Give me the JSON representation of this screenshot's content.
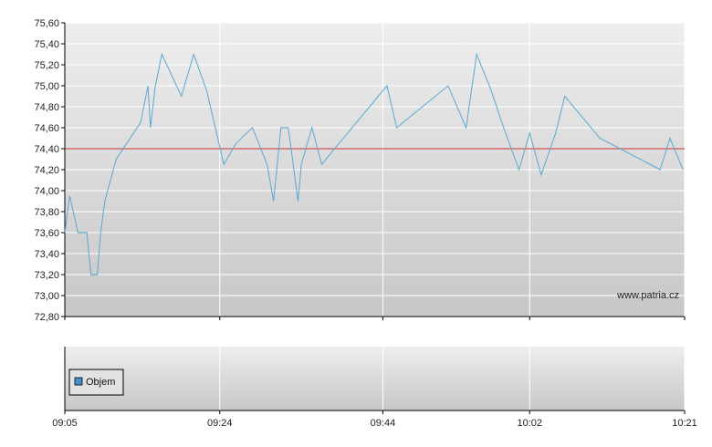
{
  "watermark": "www.patria.cz",
  "colors": {
    "line": "#5aa9d0",
    "reference": "#cc3333",
    "volume_legend": "#4a90c8"
  },
  "chart_data": [
    {
      "type": "line",
      "title": "",
      "xlabel": "",
      "ylabel": "",
      "ylim": [
        72.8,
        75.6
      ],
      "yticks": [
        "75,60",
        "75,40",
        "75,20",
        "75,00",
        "74,80",
        "74,60",
        "74,40",
        "74,20",
        "74,00",
        "73,80",
        "73,60",
        "73,40",
        "73,20",
        "73,00",
        "72,80"
      ],
      "xtick_labels": [
        "09:05",
        "09:24",
        "09:44",
        "10:02",
        "10:21"
      ],
      "xtick_minutes": [
        0,
        19,
        39,
        57,
        76
      ],
      "grid": true,
      "reference_line": 74.4,
      "series": [
        {
          "x": [
            0,
            0.6,
            1.6,
            2.7,
            3.2,
            4.0,
            4.4,
            4.9,
            6.3,
            9.3,
            10.2,
            10.5,
            11.1,
            11.9,
            14.3,
            15.8,
            17.4,
            19.5,
            21.0,
            23.0,
            24.8,
            25.6,
            26.5,
            27.1,
            27.4,
            28.0,
            28.6,
            29.0,
            30.3,
            31.5,
            39.5,
            40.7,
            47.0,
            49.2,
            50.5,
            52.3,
            53.8,
            55.7,
            57.0,
            58.4,
            60.2,
            61.3,
            65.6,
            73.0,
            74.2,
            75.8
          ],
          "y": [
            73.6,
            73.95,
            73.6,
            73.6,
            73.2,
            73.2,
            73.6,
            73.9,
            74.3,
            74.65,
            75.0,
            74.6,
            75.0,
            75.3,
            74.9,
            75.3,
            74.95,
            74.25,
            74.45,
            74.6,
            74.25,
            73.9,
            74.6,
            74.6,
            74.6,
            74.25,
            73.9,
            74.25,
            74.6,
            74.25,
            75.0,
            74.6,
            75.0,
            74.6,
            75.3,
            74.95,
            74.6,
            74.2,
            74.55,
            74.15,
            74.55,
            74.9,
            74.5,
            74.2,
            74.5,
            74.2
          ]
        }
      ]
    },
    {
      "type": "bar",
      "title": "",
      "series": [
        {
          "name": "Objem",
          "values": []
        }
      ]
    }
  ]
}
